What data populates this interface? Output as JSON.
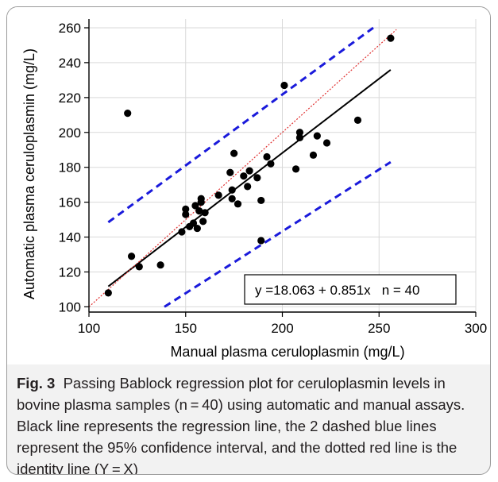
{
  "chart_data": {
    "type": "scatter",
    "xlabel": "Manual plasma ceruloplasmin (mg/L)",
    "ylabel": "Automatic plasma ceruloplasmin (mg/L)",
    "xlim": [
      100,
      300
    ],
    "ylim": [
      97,
      265
    ],
    "xticks": [
      100,
      150,
      200,
      250,
      300
    ],
    "yticks": [
      100,
      120,
      140,
      160,
      180,
      200,
      220,
      240,
      260
    ],
    "grid": true,
    "annotation": "y =18.063 + 0.851x   n = 40",
    "points": [
      {
        "x": 110,
        "y": 108
      },
      {
        "x": 120,
        "y": 211
      },
      {
        "x": 122,
        "y": 129
      },
      {
        "x": 126,
        "y": 123
      },
      {
        "x": 137,
        "y": 124
      },
      {
        "x": 148,
        "y": 143
      },
      {
        "x": 150,
        "y": 153
      },
      {
        "x": 150,
        "y": 156
      },
      {
        "x": 152,
        "y": 146
      },
      {
        "x": 154,
        "y": 148
      },
      {
        "x": 155,
        "y": 158
      },
      {
        "x": 156,
        "y": 145
      },
      {
        "x": 157,
        "y": 155
      },
      {
        "x": 158,
        "y": 160
      },
      {
        "x": 158,
        "y": 162
      },
      {
        "x": 159,
        "y": 149
      },
      {
        "x": 160,
        "y": 154
      },
      {
        "x": 167,
        "y": 164
      },
      {
        "x": 173,
        "y": 177
      },
      {
        "x": 174,
        "y": 162
      },
      {
        "x": 174,
        "y": 167
      },
      {
        "x": 175,
        "y": 188
      },
      {
        "x": 177,
        "y": 159
      },
      {
        "x": 180,
        "y": 175
      },
      {
        "x": 182,
        "y": 169
      },
      {
        "x": 183,
        "y": 178
      },
      {
        "x": 187,
        "y": 174
      },
      {
        "x": 189,
        "y": 161
      },
      {
        "x": 189,
        "y": 138
      },
      {
        "x": 192,
        "y": 186
      },
      {
        "x": 194,
        "y": 182
      },
      {
        "x": 201,
        "y": 227
      },
      {
        "x": 207,
        "y": 179
      },
      {
        "x": 209,
        "y": 200
      },
      {
        "x": 209,
        "y": 197
      },
      {
        "x": 216,
        "y": 187
      },
      {
        "x": 218,
        "y": 198
      },
      {
        "x": 223,
        "y": 194
      },
      {
        "x": 239,
        "y": 207
      },
      {
        "x": 256,
        "y": 254
      }
    ],
    "lines": [
      {
        "role": "regression",
        "color": "#000000",
        "style": "solid",
        "x": [
          110,
          256
        ],
        "y": [
          111.7,
          235.9
        ]
      },
      {
        "role": "ci-upper",
        "color": "#1a1adb",
        "style": "dashed",
        "x": [
          110,
          247
        ],
        "y": [
          148.5,
          260
        ]
      },
      {
        "role": "ci-lower",
        "color": "#1a1adb",
        "style": "dashed",
        "x": [
          139,
          256
        ],
        "y": [
          100,
          183
        ]
      },
      {
        "role": "identity",
        "color": "#e03030",
        "style": "dotted",
        "x": [
          100,
          259
        ],
        "y": [
          100,
          259
        ]
      }
    ]
  },
  "caption": {
    "fig_label": "Fig. 3",
    "text": "Passing Bablock regression plot for ceruloplasmin levels in bovine plasma samples (n = 40) using automatic and manual assays. Black line represents the regression line, the 2 dashed blue lines represent the 95% confidence interval, and the dotted red line is the identity line (Y = X)"
  }
}
